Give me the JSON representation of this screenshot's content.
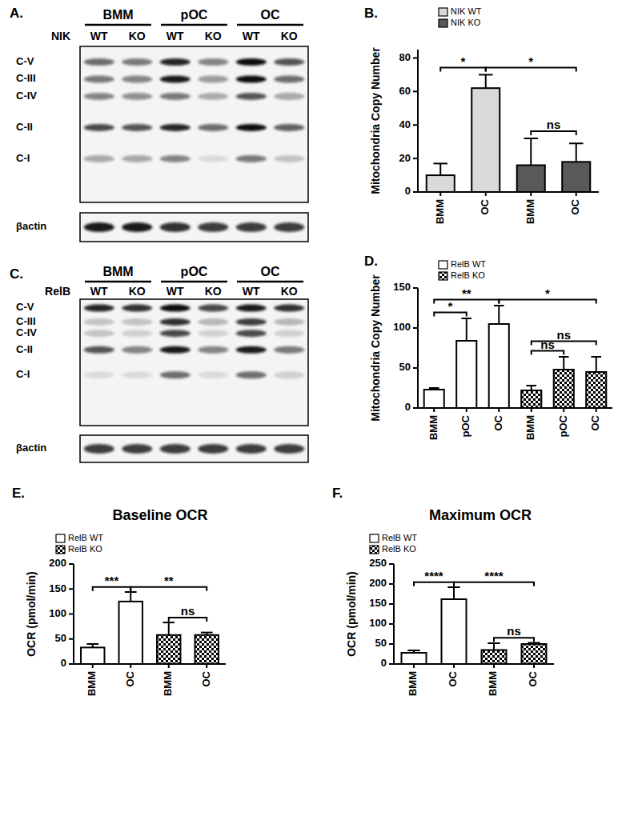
{
  "blots": [
    {
      "panel_label": "A.",
      "genotype_label": "NIK",
      "groups": [
        "BMM",
        "pOC",
        "OC"
      ],
      "lanes": [
        "WT",
        "KO",
        "WT",
        "KO",
        "WT",
        "KO"
      ],
      "rows": [
        {
          "label": "C-V",
          "intensity": [
            0.6,
            0.55,
            0.9,
            0.5,
            1.0,
            0.7
          ]
        },
        {
          "label": "C-III",
          "intensity": [
            0.55,
            0.5,
            0.95,
            0.4,
            1.0,
            0.6
          ]
        },
        {
          "label": "C-IV",
          "intensity": [
            0.5,
            0.45,
            0.55,
            0.3,
            0.7,
            0.35
          ]
        },
        {
          "label": "C-II",
          "intensity": [
            0.75,
            0.7,
            0.9,
            0.6,
            1.0,
            0.65
          ]
        },
        {
          "label": "C-I",
          "intensity": [
            0.35,
            0.35,
            0.5,
            0.1,
            0.55,
            0.2
          ]
        }
      ],
      "loading_control": {
        "label": "βactin",
        "intensity": [
          0.95,
          0.95,
          0.85,
          0.8,
          0.8,
          0.8
        ]
      }
    },
    {
      "panel_label": "C.",
      "genotype_label": "RelB",
      "groups": [
        "BMM",
        "pOC",
        "OC"
      ],
      "lanes": [
        "WT",
        "KO",
        "WT",
        "KO",
        "WT",
        "KO"
      ],
      "rows": [
        {
          "label": "C-V",
          "intensity": [
            0.9,
            0.85,
            1.0,
            0.75,
            0.95,
            0.85
          ]
        },
        {
          "label": "C-III",
          "intensity": [
            0.2,
            0.2,
            0.85,
            0.25,
            0.8,
            0.25
          ]
        },
        {
          "label": "C-IV",
          "intensity": [
            0.2,
            0.15,
            0.75,
            0.15,
            0.75,
            0.15
          ]
        },
        {
          "label": "C-II",
          "intensity": [
            0.7,
            0.5,
            0.95,
            0.5,
            0.95,
            0.55
          ]
        },
        {
          "label": "C-I",
          "intensity": [
            0.1,
            0.1,
            0.6,
            0.1,
            0.6,
            0.15
          ]
        }
      ],
      "loading_control": {
        "label": "βactin",
        "intensity": [
          0.8,
          0.8,
          0.8,
          0.8,
          0.8,
          0.8
        ]
      }
    }
  ],
  "chart_data": [
    {
      "type": "bar",
      "panel_label": "B.",
      "y_label": "Mitochondria Copy Number",
      "categories": [
        "BMM",
        "OC",
        "BMM",
        "OC"
      ],
      "series": [
        {
          "name": "NIK WT",
          "color": "#d9d9d9",
          "values": [
            10,
            62,
            null,
            null
          ],
          "errors": [
            7,
            8,
            null,
            null
          ]
        },
        {
          "name": "NIK KO",
          "color": "#595959",
          "values": [
            null,
            null,
            16,
            18
          ],
          "errors": [
            null,
            null,
            16,
            11
          ]
        }
      ],
      "ylim": [
        0,
        85
      ],
      "yticks": [
        0,
        20,
        40,
        60,
        80
      ],
      "annotations": [
        {
          "from": 0,
          "to": 1,
          "text": "*"
        },
        {
          "from": 1,
          "to": 3,
          "text": "*"
        },
        {
          "from": 2,
          "to": 3,
          "text": "ns"
        }
      ]
    },
    {
      "type": "bar",
      "panel_label": "D.",
      "y_label": "Mitochondria Copy Number",
      "categories": [
        "BMM",
        "pOC",
        "OC",
        "BMM",
        "pOC",
        "OC"
      ],
      "series": [
        {
          "name": "RelB WT",
          "color": "#ffffff",
          "values": [
            23,
            84,
            105,
            null,
            null,
            null
          ],
          "errors": [
            2,
            28,
            23,
            null,
            null,
            null
          ]
        },
        {
          "name": "RelB KO",
          "color": "#000000",
          "marker": "checkered",
          "values": [
            null,
            null,
            null,
            22,
            48,
            45
          ],
          "errors": [
            null,
            null,
            null,
            6,
            16,
            19
          ]
        }
      ],
      "ylim": [
        0,
        150
      ],
      "yticks": [
        0,
        50,
        100,
        150
      ],
      "annotations": [
        {
          "from": 0,
          "to": 1,
          "text": "*"
        },
        {
          "from": 0,
          "to": 2,
          "text": "**"
        },
        {
          "from": 2,
          "to": 5,
          "text": "*"
        },
        {
          "from": 3,
          "to": 4,
          "text": "ns"
        },
        {
          "from": 3,
          "to": 5,
          "text": "ns"
        }
      ]
    },
    {
      "type": "bar",
      "panel_label": "E.",
      "title": "Baseline OCR",
      "y_label": "OCR (pmol/min)",
      "categories": [
        "BMM",
        "OC",
        "BMM",
        "OC"
      ],
      "series": [
        {
          "name": "RelB WT",
          "color": "#ffffff",
          "values": [
            33,
            125,
            null,
            null
          ],
          "errors": [
            7,
            19,
            null,
            null
          ]
        },
        {
          "name": "RelB KO",
          "color": "#000000",
          "marker": "checkered",
          "values": [
            null,
            null,
            58,
            58
          ],
          "errors": [
            null,
            null,
            25,
            5
          ]
        }
      ],
      "ylim": [
        0,
        200
      ],
      "yticks": [
        0,
        50,
        100,
        150,
        200
      ],
      "annotations": [
        {
          "from": 0,
          "to": 1,
          "text": "***"
        },
        {
          "from": 1,
          "to": 3,
          "text": "**"
        },
        {
          "from": 2,
          "to": 3,
          "text": "ns"
        }
      ]
    },
    {
      "type": "bar",
      "panel_label": "F.",
      "title": "Maximum OCR",
      "y_label": "OCR (pmol/min)",
      "categories": [
        "BMM",
        "OC",
        "BMM",
        "OC"
      ],
      "series": [
        {
          "name": "RelB WT",
          "color": "#ffffff",
          "values": [
            28,
            162,
            null,
            null
          ],
          "errors": [
            6,
            30,
            null,
            null
          ]
        },
        {
          "name": "RelB KO",
          "color": "#000000",
          "marker": "checkered",
          "values": [
            null,
            null,
            35,
            50
          ],
          "errors": [
            null,
            null,
            17,
            3
          ]
        }
      ],
      "ylim": [
        0,
        250
      ],
      "yticks": [
        0,
        50,
        100,
        150,
        200,
        250
      ],
      "annotations": [
        {
          "from": 0,
          "to": 1,
          "text": "****"
        },
        {
          "from": 1,
          "to": 3,
          "text": "****"
        },
        {
          "from": 2,
          "to": 3,
          "text": "ns"
        }
      ]
    }
  ]
}
